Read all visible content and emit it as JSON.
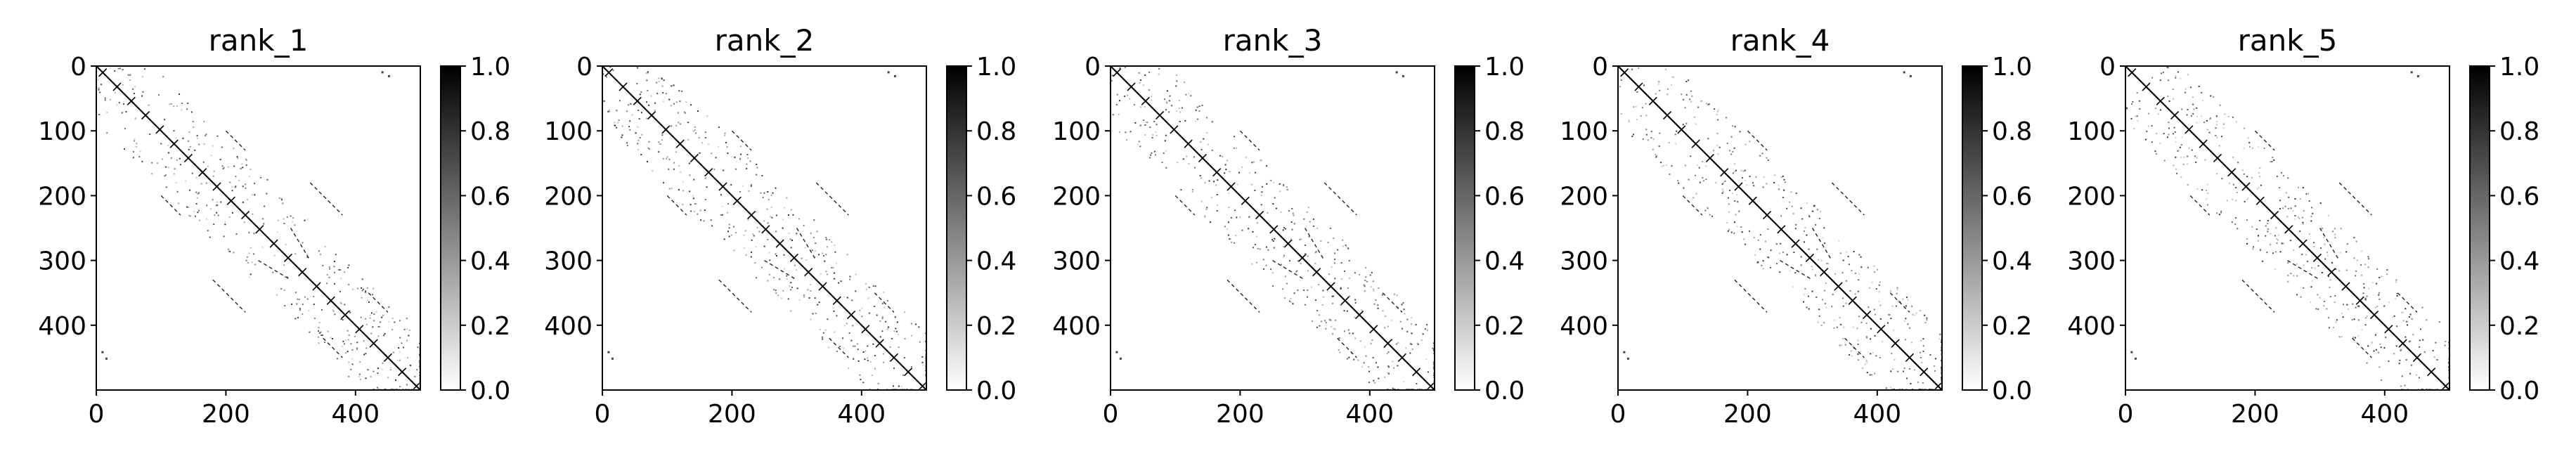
{
  "chart_data": [
    {
      "type": "heatmap",
      "title": "rank_1",
      "xlim": [
        0,
        500
      ],
      "ylim": [
        500,
        0
      ],
      "xticks": [
        "0",
        "200",
        "400"
      ],
      "yticks": [
        "0",
        "100",
        "200",
        "300",
        "400"
      ],
      "colorbar": {
        "range": [
          0.0,
          1.0
        ],
        "ticks": [
          "0.0",
          "0.2",
          "0.4",
          "0.6",
          "0.8",
          "1.0"
        ],
        "colormap": "gray_r"
      }
    },
    {
      "type": "heatmap",
      "title": "rank_2",
      "xlim": [
        0,
        500
      ],
      "ylim": [
        500,
        0
      ],
      "xticks": [
        "0",
        "200",
        "400"
      ],
      "yticks": [
        "0",
        "100",
        "200",
        "300",
        "400"
      ],
      "colorbar": {
        "range": [
          0.0,
          1.0
        ],
        "ticks": [
          "0.0",
          "0.2",
          "0.4",
          "0.6",
          "0.8",
          "1.0"
        ],
        "colormap": "gray_r"
      }
    },
    {
      "type": "heatmap",
      "title": "rank_3",
      "xlim": [
        0,
        500
      ],
      "ylim": [
        500,
        0
      ],
      "xticks": [
        "0",
        "200",
        "400"
      ],
      "yticks": [
        "0",
        "100",
        "200",
        "300",
        "400"
      ],
      "colorbar": {
        "range": [
          0.0,
          1.0
        ],
        "ticks": [
          "0.0",
          "0.2",
          "0.4",
          "0.6",
          "0.8",
          "1.0"
        ],
        "colormap": "gray_r"
      }
    },
    {
      "type": "heatmap",
      "title": "rank_4",
      "xlim": [
        0,
        500
      ],
      "ylim": [
        500,
        0
      ],
      "xticks": [
        "0",
        "200",
        "400"
      ],
      "yticks": [
        "0",
        "100",
        "200",
        "300",
        "400"
      ],
      "colorbar": {
        "range": [
          0.0,
          1.0
        ],
        "ticks": [
          "0.0",
          "0.2",
          "0.4",
          "0.6",
          "0.8",
          "1.0"
        ],
        "colormap": "gray_r"
      }
    },
    {
      "type": "heatmap",
      "title": "rank_5",
      "xlim": [
        0,
        500
      ],
      "ylim": [
        500,
        0
      ],
      "xticks": [
        "0",
        "200",
        "400"
      ],
      "yticks": [
        "0",
        "100",
        "200",
        "300",
        "400"
      ],
      "colorbar": {
        "range": [
          0.0,
          1.0
        ],
        "ticks": [
          "0.0",
          "0.2",
          "0.4",
          "0.6",
          "0.8",
          "1.0"
        ],
        "colormap": "gray_r"
      }
    }
  ]
}
